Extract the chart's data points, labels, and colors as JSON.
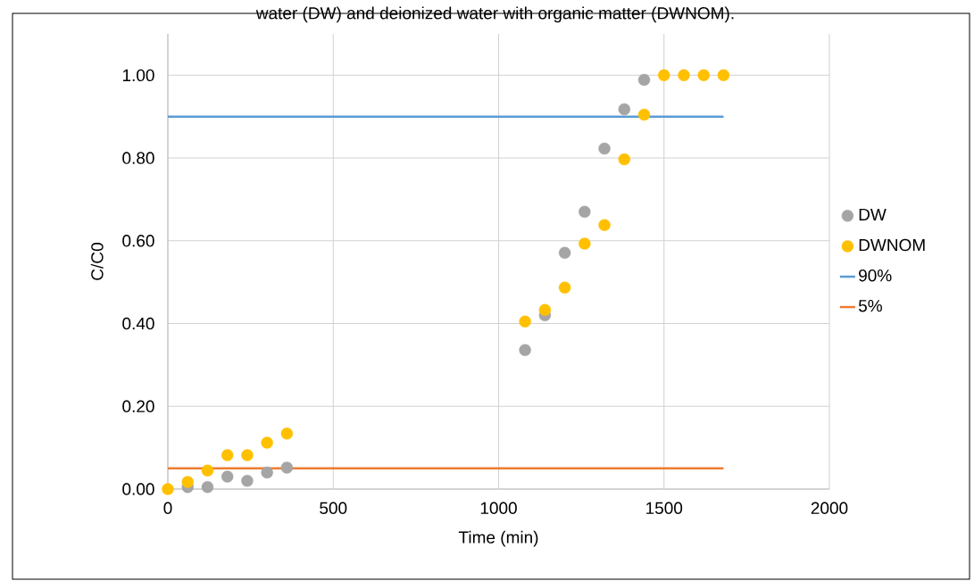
{
  "chart_data": {
    "type": "scatter",
    "annotations": [
      "water (DW) and deionized water with organic matter (DWNOM)."
    ],
    "xlabel": "Time (min)",
    "ylabel": "C/C0",
    "xlim": [
      0,
      2000
    ],
    "xticks": [
      0,
      500,
      1000,
      1500,
      2000
    ],
    "ylim": [
      0,
      1.1
    ],
    "yticks": [
      {
        "value": 0,
        "label": "0.00"
      },
      {
        "value": 0.2,
        "label": "0.20"
      },
      {
        "value": 0.4,
        "label": "0.40"
      },
      {
        "value": 0.6,
        "label": "0.60"
      },
      {
        "value": 0.8,
        "label": "0.80"
      },
      {
        "value": 1.0,
        "label": "1.00"
      }
    ],
    "grid": true,
    "legend": "right",
    "series": [
      {
        "name": "DW",
        "color": "#a5a5a5",
        "marker": "circle",
        "x": [
          60,
          120,
          180,
          240,
          300,
          360,
          1080,
          1140,
          1200,
          1260,
          1320,
          1380,
          1440
        ],
        "values": [
          0.005,
          0.005,
          0.03,
          0.02,
          0.04,
          0.052,
          0.336,
          0.42,
          0.571,
          0.67,
          0.823,
          0.918,
          0.989
        ]
      },
      {
        "name": "DWNOM",
        "color": "#ffc000",
        "marker": "circle",
        "x": [
          0,
          60,
          120,
          180,
          240,
          300,
          360,
          1080,
          1140,
          1200,
          1260,
          1320,
          1380,
          1440,
          1500,
          1560,
          1620,
          1680
        ],
        "values": [
          0,
          0.017,
          0.045,
          0.082,
          0.082,
          0.112,
          0.134,
          0.405,
          0.433,
          0.487,
          0.593,
          0.638,
          0.797,
          0.905,
          1.0,
          1.0,
          1.0,
          1.0
        ]
      },
      {
        "name": "90%",
        "type": "line",
        "color": "#5b9bd5",
        "marker": "none",
        "x": [
          0,
          1680
        ],
        "values": [
          0.9,
          0.9
        ]
      },
      {
        "name": "5%",
        "type": "line",
        "color": "#ed7d31",
        "marker": "none",
        "x": [
          0,
          1680
        ],
        "values": [
          0.05,
          0.05
        ]
      }
    ]
  }
}
